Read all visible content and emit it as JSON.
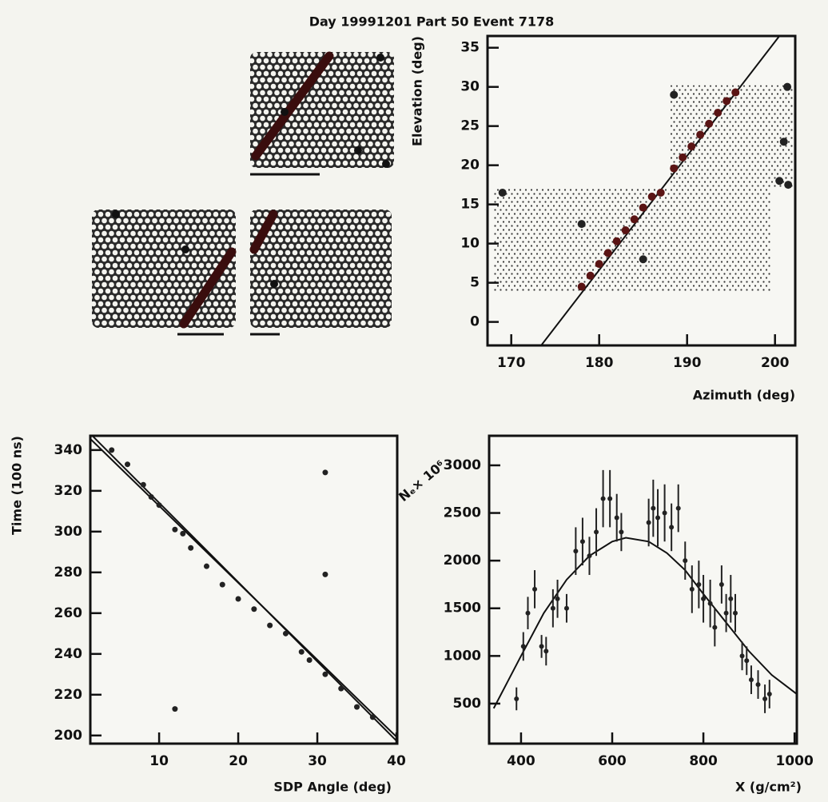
{
  "title": "Day 19991201 Part 50 Event 7178",
  "chart_data": [
    {
      "type": "scatter",
      "x_label": "Azimuth (deg)",
      "y_label": "Elevation (deg)",
      "xlim": [
        167.3,
        202.3
      ],
      "ylim": [
        -3,
        36.5
      ],
      "xticks": [
        170,
        180,
        190,
        200
      ],
      "yticks": [
        0,
        5,
        10,
        15,
        20,
        25,
        30,
        35
      ],
      "mirrors": [
        {
          "x": [
            168,
            199.5
          ],
          "y": [
            3.8,
            17
          ]
        },
        {
          "x": [
            188,
            202
          ],
          "y": [
            17,
            30.2
          ]
        }
      ],
      "series": [
        {
          "color": "#5a1414",
          "x": [
            178,
            179,
            180,
            181,
            182,
            183,
            184,
            185,
            186,
            187,
            188.5,
            189.5,
            190.5,
            191.5,
            192.5,
            193.5,
            194.5,
            195.5
          ],
          "y": [
            4.5,
            5.9,
            7.4,
            8.8,
            10.3,
            11.7,
            13.1,
            14.6,
            16.0,
            16.5,
            19.6,
            21.0,
            22.4,
            23.9,
            25.3,
            26.7,
            28.2,
            29.3
          ]
        },
        {
          "color": "#222222",
          "x": [
            169,
            178,
            185,
            188.5,
            201.4,
            201,
            200.5,
            201.5
          ],
          "y": [
            16.5,
            12.5,
            8,
            29,
            30,
            23,
            18,
            17.5
          ]
        }
      ],
      "fits": [
        {
          "color": "#111111",
          "x": [
            173.4,
            200.5
          ],
          "y": [
            -3,
            36.5
          ]
        }
      ]
    },
    {
      "type": "scatter",
      "x_label": "SDP Angle (deg)",
      "y_label": "Time (100 ns)",
      "xlim": [
        1.3,
        40.1
      ],
      "ylim": [
        196,
        347
      ],
      "xticks": [
        10,
        20,
        30,
        40
      ],
      "yticks": [
        200,
        220,
        240,
        260,
        280,
        300,
        320,
        340
      ],
      "series": [
        {
          "color": "#222222",
          "x": [
            4,
            6,
            8,
            9,
            10,
            12,
            13,
            14,
            16,
            18,
            20,
            22,
            24,
            26,
            28,
            29,
            31,
            33,
            35,
            37,
            31,
            31,
            12
          ],
          "y": [
            340,
            333,
            323,
            317,
            313,
            301,
            299,
            292,
            283,
            274,
            267,
            262,
            254,
            250,
            241,
            237,
            230,
            223,
            214,
            209,
            329,
            279,
            213
          ]
        }
      ],
      "fits": [
        {
          "color": "#111111",
          "x": [
            1.3,
            40.1
          ],
          "y": [
            348,
            197
          ]
        },
        {
          "color": "#111111",
          "x": [
            1.3,
            40.1
          ],
          "y": [
            345.5,
            199
          ]
        }
      ]
    },
    {
      "type": "errorbar",
      "x_label": "X (g/cm²)",
      "y_label": "Nₑ× 10⁶",
      "xlim": [
        330,
        1005
      ],
      "ylim": [
        80,
        3310
      ],
      "xticks": [
        400,
        600,
        800,
        1000
      ],
      "yticks": [
        500,
        1000,
        1500,
        2000,
        2500,
        3000
      ],
      "series": [
        {
          "color": "#222222",
          "x": [
            390,
            405,
            415,
            430,
            445,
            455,
            470,
            480,
            500,
            520,
            535,
            550,
            565,
            580,
            595,
            610,
            620,
            680,
            690,
            700,
            715,
            730,
            745,
            760,
            775,
            790,
            800,
            815,
            825,
            840,
            850,
            860,
            870,
            885,
            895,
            905,
            920,
            935,
            945
          ],
          "y": [
            550,
            1100,
            1450,
            1700,
            1100,
            1050,
            1500,
            1600,
            1500,
            2100,
            2200,
            2050,
            2300,
            2650,
            2650,
            2450,
            2300,
            2400,
            2550,
            2450,
            2500,
            2350,
            2550,
            2000,
            1700,
            1750,
            1600,
            1550,
            1300,
            1750,
            1450,
            1600,
            1450,
            1000,
            950,
            750,
            700,
            550,
            600
          ],
          "errors": [
            120,
            150,
            170,
            200,
            120,
            150,
            200,
            200,
            150,
            250,
            250,
            200,
            250,
            300,
            300,
            250,
            200,
            250,
            300,
            300,
            300,
            250,
            250,
            200,
            250,
            250,
            250,
            250,
            200,
            200,
            200,
            250,
            200,
            150,
            150,
            150,
            150,
            150,
            150
          ]
        }
      ],
      "fits": [
        {
          "color": "#111111",
          "x": [
            340,
            400,
            450,
            500,
            550,
            600,
            630,
            680,
            720,
            760,
            800,
            850,
            900,
            950,
            1005
          ],
          "y": [
            450,
            1000,
            1450,
            1800,
            2050,
            2200,
            2240,
            2200,
            2080,
            1900,
            1650,
            1350,
            1050,
            800,
            600
          ]
        }
      ]
    }
  ]
}
